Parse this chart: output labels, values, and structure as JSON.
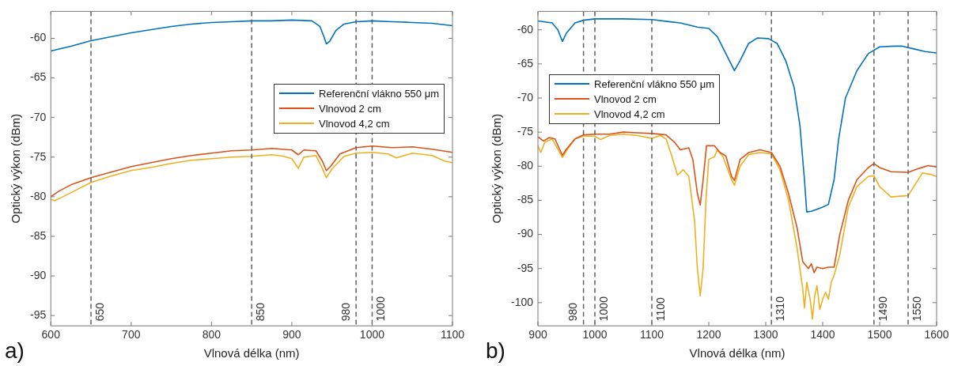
{
  "chart_data": [
    {
      "type": "line",
      "xlabel": "Vlnová délka (nm)",
      "ylabel": "Optický výkon (dBm)",
      "annotations": [
        "a)"
      ],
      "xlim": [
        600,
        1100
      ],
      "xticks": [
        600,
        700,
        800,
        900,
        1000,
        1100
      ],
      "ylim": [
        -96.3,
        -56.6
      ],
      "yticks": [
        -95,
        -90,
        -85,
        -80,
        -75,
        -70,
        -65,
        -60
      ],
      "grid": false,
      "legend": "right",
      "marker": "none",
      "line_style": "solid",
      "ref_lines": [
        {
          "axis": "x",
          "value": 650,
          "label": "650",
          "color": "#606060",
          "line_style": "dashed"
        },
        {
          "axis": "x",
          "value": 850,
          "label": "850",
          "color": "#606060",
          "line_style": "dashed"
        },
        {
          "axis": "x",
          "value": 980,
          "label": "980",
          "color": "#606060",
          "line_style": "dashed"
        },
        {
          "axis": "x",
          "value": 1000,
          "label": "1000",
          "color": "#606060",
          "line_style": "dashed"
        }
      ],
      "series": [
        {
          "name": "Referenční vlákno 550 μm",
          "color": "#0072bd",
          "x": [
            600,
            625,
            650,
            675,
            700,
            725,
            750,
            775,
            800,
            825,
            850,
            875,
            900,
            925,
            935,
            940,
            943,
            947,
            955,
            965,
            980,
            1000,
            1025,
            1050,
            1075,
            1100
          ],
          "values": [
            -61.6,
            -61.0,
            -60.3,
            -59.8,
            -59.3,
            -58.9,
            -58.5,
            -58.2,
            -58.0,
            -57.9,
            -57.8,
            -57.8,
            -57.7,
            -57.8,
            -58.5,
            -59.8,
            -60.7,
            -60.4,
            -59.0,
            -58.2,
            -57.9,
            -57.8,
            -57.9,
            -58.0,
            -58.1,
            -58.4
          ]
        },
        {
          "name": "Vlnovod 2 cm",
          "color": "#d95319",
          "x": [
            600,
            610,
            625,
            650,
            675,
            700,
            725,
            750,
            775,
            800,
            825,
            850,
            875,
            900,
            908,
            915,
            930,
            938,
            943,
            948,
            960,
            980,
            1000,
            1025,
            1050,
            1075,
            1100
          ],
          "values": [
            -80.0,
            -79.3,
            -78.5,
            -77.6,
            -76.9,
            -76.2,
            -75.7,
            -75.2,
            -74.8,
            -74.5,
            -74.2,
            -74.1,
            -73.9,
            -74.1,
            -74.7,
            -74.1,
            -74.2,
            -75.5,
            -76.7,
            -76.2,
            -74.6,
            -73.8,
            -73.6,
            -73.8,
            -73.7,
            -74.0,
            -74.4
          ]
        },
        {
          "name": "Vlnovod 4,2 cm",
          "color": "#edb120",
          "x": [
            600,
            605,
            625,
            650,
            675,
            700,
            725,
            750,
            775,
            800,
            825,
            850,
            875,
            890,
            900,
            908,
            915,
            930,
            937,
            943,
            950,
            965,
            980,
            1000,
            1020,
            1030,
            1050,
            1075,
            1090,
            1100
          ],
          "values": [
            -80.3,
            -80.5,
            -79.5,
            -78.2,
            -77.4,
            -76.7,
            -76.3,
            -75.8,
            -75.4,
            -75.2,
            -75.0,
            -74.9,
            -74.7,
            -74.9,
            -75.2,
            -76.4,
            -75.0,
            -74.8,
            -76.2,
            -77.6,
            -76.5,
            -74.9,
            -74.5,
            -74.4,
            -74.6,
            -75.1,
            -74.5,
            -74.8,
            -75.5,
            -75.7
          ]
        }
      ]
    },
    {
      "type": "line",
      "xlabel": "Vlnová délka (nm)",
      "ylabel": "Optický výkon (dBm)",
      "annotations": [
        "b)"
      ],
      "xlim": [
        900,
        1600
      ],
      "xticks": [
        900,
        1000,
        1100,
        1200,
        1300,
        1400,
        1500,
        1600
      ],
      "ylim": [
        -103.4,
        -57.3
      ],
      "yticks": [
        -100,
        -95,
        -90,
        -85,
        -80,
        -75,
        -70,
        -65,
        -60
      ],
      "grid": false,
      "legend": "top left",
      "marker": "none",
      "line_style": "solid",
      "ref_lines": [
        {
          "axis": "x",
          "value": 980,
          "label": "980",
          "color": "#606060",
          "line_style": "dashed"
        },
        {
          "axis": "x",
          "value": 1000,
          "label": "1000",
          "color": "#606060",
          "line_style": "dashed"
        },
        {
          "axis": "x",
          "value": 1100,
          "label": "1100",
          "color": "#606060",
          "line_style": "dashed"
        },
        {
          "axis": "x",
          "value": 1310,
          "label": "1310",
          "color": "#606060",
          "line_style": "dashed"
        },
        {
          "axis": "x",
          "value": 1490,
          "label": "1490",
          "color": "#606060",
          "line_style": "dashed"
        },
        {
          "axis": "x",
          "value": 1550,
          "label": "1550",
          "color": "#606060",
          "line_style": "dashed"
        }
      ],
      "series": [
        {
          "name": "Referenční vlákno 550 μm",
          "color": "#0072bd",
          "x": [
            900,
            925,
            935,
            943,
            950,
            965,
            980,
            1000,
            1050,
            1100,
            1130,
            1150,
            1180,
            1200,
            1215,
            1230,
            1245,
            1255,
            1270,
            1285,
            1305,
            1320,
            1335,
            1350,
            1360,
            1368,
            1372,
            1380,
            1390,
            1400,
            1410,
            1420,
            1428,
            1440,
            1460,
            1480,
            1500,
            1525,
            1540,
            1560,
            1580,
            1600
          ],
          "values": [
            -58.7,
            -59.0,
            -60.0,
            -61.7,
            -60.5,
            -59.0,
            -58.6,
            -58.4,
            -58.4,
            -58.5,
            -58.8,
            -59.0,
            -59.6,
            -59.8,
            -61.0,
            -63.5,
            -66.0,
            -64.5,
            -62.0,
            -61.2,
            -61.3,
            -62.0,
            -64.5,
            -68.5,
            -74.0,
            -82.0,
            -86.7,
            -86.6,
            -86.3,
            -86.0,
            -85.6,
            -82.0,
            -76.0,
            -70.0,
            -66.0,
            -63.5,
            -62.5,
            -62.4,
            -62.4,
            -62.8,
            -63.2,
            -63.4
          ]
        },
        {
          "name": "Vlnovod 2 cm",
          "color": "#d95319",
          "x": [
            900,
            910,
            920,
            930,
            938,
            943,
            950,
            965,
            980,
            1000,
            1025,
            1050,
            1075,
            1100,
            1125,
            1140,
            1150,
            1165,
            1172,
            1180,
            1185,
            1190,
            1196,
            1210,
            1220,
            1230,
            1240,
            1245,
            1255,
            1270,
            1290,
            1310,
            1325,
            1340,
            1355,
            1365,
            1375,
            1380,
            1385,
            1390,
            1400,
            1410,
            1420,
            1430,
            1445,
            1460,
            1480,
            1490,
            1500,
            1520,
            1550,
            1570,
            1585,
            1600
          ],
          "values": [
            -75.7,
            -76.3,
            -75.8,
            -76.0,
            -77.5,
            -78.4,
            -77.5,
            -76.0,
            -75.4,
            -75.3,
            -75.3,
            -75.0,
            -75.1,
            -75.2,
            -75.4,
            -76.5,
            -77.6,
            -77.3,
            -79.0,
            -84.0,
            -85.7,
            -82.0,
            -77.0,
            -77.0,
            -78.0,
            -78.5,
            -81.5,
            -82.1,
            -79.0,
            -78.0,
            -77.6,
            -78.0,
            -80.0,
            -84.0,
            -89.0,
            -94.0,
            -95.0,
            -94.3,
            -95.6,
            -94.8,
            -95.0,
            -94.8,
            -94.8,
            -90.0,
            -85.0,
            -82.0,
            -80.2,
            -79.6,
            -80.2,
            -80.8,
            -80.9,
            -80.3,
            -79.9,
            -80.1
          ]
        },
        {
          "name": "Vlnovod 4,2 cm",
          "color": "#edb120",
          "x": [
            900,
            905,
            912,
            925,
            935,
            943,
            952,
            965,
            980,
            1000,
            1010,
            1025,
            1050,
            1075,
            1100,
            1115,
            1125,
            1135,
            1145,
            1155,
            1165,
            1175,
            1180,
            1185,
            1190,
            1195,
            1200,
            1210,
            1215,
            1225,
            1240,
            1245,
            1255,
            1270,
            1290,
            1310,
            1325,
            1340,
            1355,
            1365,
            1368,
            1372,
            1378,
            1382,
            1386,
            1390,
            1395,
            1400,
            1405,
            1410,
            1415,
            1420,
            1430,
            1445,
            1460,
            1480,
            1490,
            1500,
            1520,
            1550,
            1560,
            1575,
            1590,
            1600
          ],
          "values": [
            -77.0,
            -78.0,
            -76.5,
            -76.0,
            -77.5,
            -78.7,
            -77.5,
            -76.0,
            -75.6,
            -75.6,
            -76.1,
            -75.5,
            -75.3,
            -75.5,
            -75.9,
            -75.5,
            -76.0,
            -78.5,
            -81.3,
            -80.5,
            -81.5,
            -88.0,
            -95.0,
            -99.0,
            -95.0,
            -85.0,
            -79.0,
            -78.6,
            -77.6,
            -78.6,
            -82.0,
            -82.8,
            -80.0,
            -78.3,
            -78.0,
            -78.2,
            -80.5,
            -85.0,
            -92.0,
            -98.0,
            -100.8,
            -97.0,
            -99.5,
            -102.4,
            -99.0,
            -97.5,
            -101.0,
            -99.5,
            -98.5,
            -99.5,
            -97.0,
            -96.0,
            -93.0,
            -86.0,
            -83.0,
            -81.5,
            -81.4,
            -83.0,
            -84.5,
            -84.3,
            -83.0,
            -81.0,
            -81.2,
            -81.5
          ]
        }
      ]
    }
  ]
}
